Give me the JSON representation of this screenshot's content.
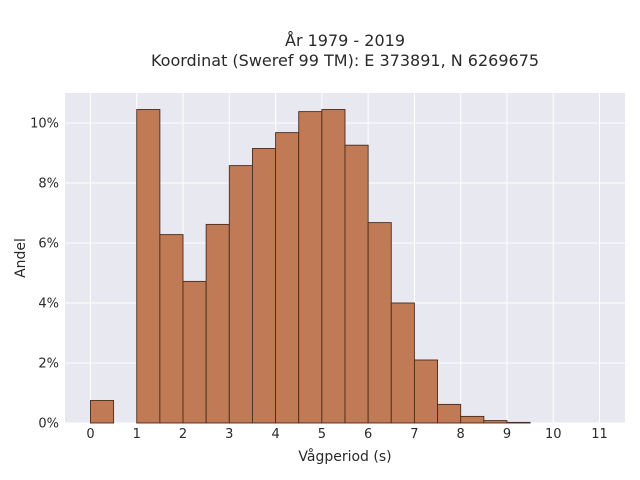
{
  "chart_data": {
    "type": "bar",
    "title": "År 1979 - 2019",
    "subtitle": "Koordinat (Sweref 99 TM): E 373891, N 6269675",
    "xlabel": "Vågperiod (s)",
    "ylabel": "Andel",
    "bin_width": 0.5,
    "bins": [
      {
        "start": 0.0,
        "value": 0.75
      },
      {
        "start": 0.5,
        "value": 0.0
      },
      {
        "start": 1.0,
        "value": 10.45
      },
      {
        "start": 1.5,
        "value": 6.28
      },
      {
        "start": 2.0,
        "value": 4.72
      },
      {
        "start": 2.5,
        "value": 6.62
      },
      {
        "start": 3.0,
        "value": 8.58
      },
      {
        "start": 3.5,
        "value": 9.15
      },
      {
        "start": 4.0,
        "value": 9.68
      },
      {
        "start": 4.5,
        "value": 10.38
      },
      {
        "start": 5.0,
        "value": 10.45
      },
      {
        "start": 5.5,
        "value": 9.26
      },
      {
        "start": 6.0,
        "value": 6.68
      },
      {
        "start": 6.5,
        "value": 4.0
      },
      {
        "start": 7.0,
        "value": 2.1
      },
      {
        "start": 7.5,
        "value": 0.62
      },
      {
        "start": 8.0,
        "value": 0.22
      },
      {
        "start": 8.5,
        "value": 0.08
      },
      {
        "start": 9.0,
        "value": 0.02
      }
    ],
    "x_ticks": [
      0,
      1,
      2,
      3,
      4,
      5,
      6,
      7,
      8,
      9,
      10,
      11
    ],
    "y_ticks": [
      0,
      2,
      4,
      6,
      8,
      10
    ],
    "y_tick_format": "%",
    "xlim": [
      -0.55,
      11.55
    ],
    "ylim": [
      0,
      11
    ],
    "grid": true,
    "colors": {
      "bar": "#c07a55",
      "bar_edge": "#4a2c1c",
      "background": "#e8e8f0",
      "grid": "#ffffff"
    }
  }
}
